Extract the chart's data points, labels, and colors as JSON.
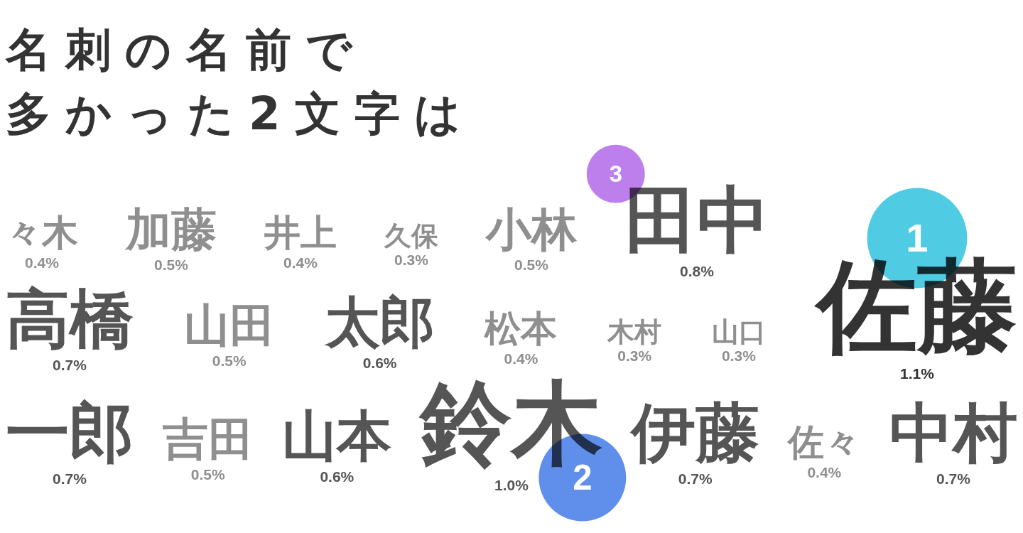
{
  "chart_data": {
    "type": "other",
    "title": "名刺の名前で",
    "subtitle": "多かった2文字は",
    "categories": [
      "々木",
      "加藤",
      "井上",
      "久保",
      "小林",
      "田中",
      "佐藤",
      "高橋",
      "山田",
      "太郎",
      "松本",
      "木村",
      "山口",
      "一郎",
      "吉田",
      "山本",
      "鈴木",
      "伊藤",
      "佐々",
      "中村"
    ],
    "values": [
      0.4,
      0.5,
      0.4,
      0.3,
      0.5,
      0.8,
      1.1,
      0.7,
      0.5,
      0.6,
      0.4,
      0.3,
      0.3,
      0.7,
      0.5,
      0.6,
      1.0,
      0.7,
      0.4,
      0.7
    ],
    "value_labels": [
      "0.4%",
      "0.5%",
      "0.4%",
      "0.3%",
      "0.5%",
      "0.8%",
      "1.1%",
      "0.7%",
      "0.5%",
      "0.6%",
      "0.4%",
      "0.3%",
      "0.3%",
      "0.7%",
      "0.5%",
      "0.6%",
      "1.0%",
      "0.7%",
      "0.4%",
      "0.7%"
    ],
    "colors": [
      "#8f8f8f",
      "#8f8f8f",
      "#8f8f8f",
      "#8f8f8f",
      "#8f8f8f",
      "#555555",
      "#333333",
      "#555555",
      "#8f8f8f",
      "#555555",
      "#8f8f8f",
      "#8f8f8f",
      "#8f8f8f",
      "#555555",
      "#8f8f8f",
      "#555555",
      "#555555",
      "#555555",
      "#8f8f8f",
      "#555555"
    ],
    "annotations": [
      {
        "text": "1",
        "x": "佐藤"
      },
      {
        "text": "2",
        "x": "鈴木"
      },
      {
        "text": "3",
        "x": "田中"
      }
    ]
  }
}
